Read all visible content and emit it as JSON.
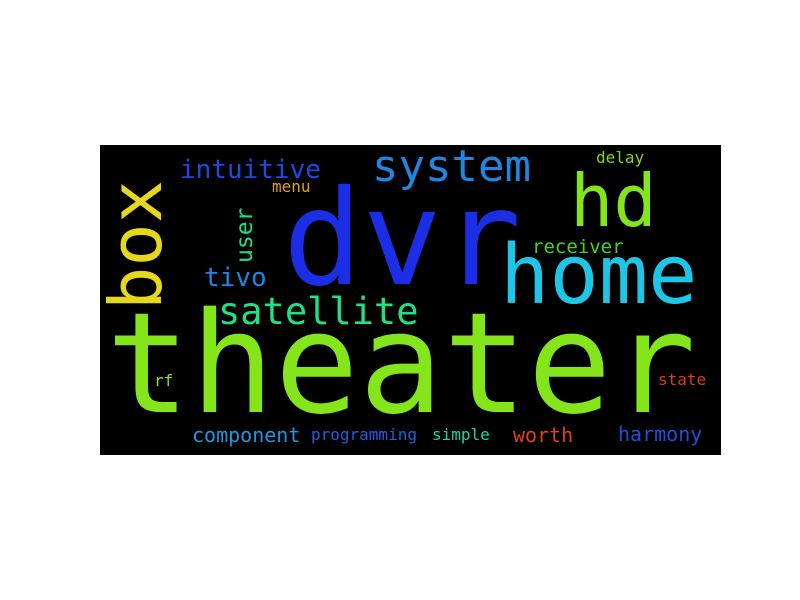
{
  "words": {
    "theater": {
      "text": "theater",
      "color": "#84e51a"
    },
    "dvr": {
      "text": "dvr",
      "color": "#1b2ee6"
    },
    "home": {
      "text": "home",
      "color": "#1dc6e6"
    },
    "box": {
      "text": "box",
      "color": "#e5d71c"
    },
    "hd": {
      "text": "hd",
      "color": "#84e51a"
    },
    "system": {
      "text": "system",
      "color": "#1f86e3"
    },
    "satellite": {
      "text": "satellite",
      "color": "#1de387"
    },
    "intuitive": {
      "text": "intuitive",
      "color": "#1d4be0"
    },
    "tivo": {
      "text": "tivo",
      "color": "#1d86e3"
    },
    "user": {
      "text": "user",
      "color": "#1ce07a"
    },
    "menu": {
      "text": "menu",
      "color": "#e0a019"
    },
    "receiver": {
      "text": "receiver",
      "color": "#41d61c"
    },
    "delay": {
      "text": "delay",
      "color": "#84d61a"
    },
    "component": {
      "text": "component",
      "color": "#1f96e0"
    },
    "programming": {
      "text": "programming",
      "color": "#1f5fe0"
    },
    "simple": {
      "text": "simple",
      "color": "#1dd6a0"
    },
    "worth": {
      "text": "worth",
      "color": "#e0401a"
    },
    "harmony": {
      "text": "harmony",
      "color": "#1d50e0"
    },
    "state": {
      "text": "state",
      "color": "#e03a1a"
    },
    "rf": {
      "text": "rf",
      "color": "#a3d61a"
    }
  }
}
